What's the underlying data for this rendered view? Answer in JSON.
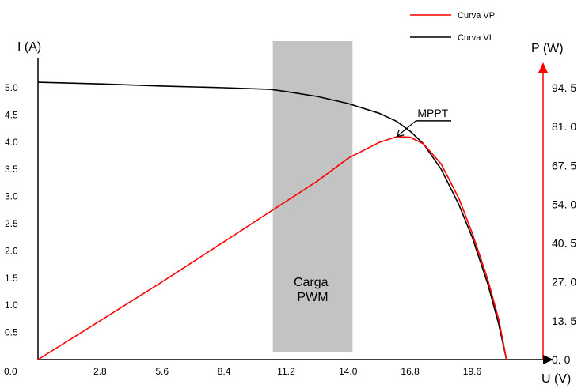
{
  "chart_data": {
    "type": "line",
    "x_axis": {
      "label": "U (V)",
      "origin_label": "0.0",
      "ticks": [
        0,
        2.8,
        5.6,
        8.4,
        11.2,
        14.0,
        16.8,
        19.6
      ],
      "tick_labels": [
        "2.8",
        "5.6",
        "8.4",
        "11.2",
        "14.0",
        "16.8",
        "19.6"
      ],
      "range": [
        0,
        22.8
      ]
    },
    "y_axis_left": {
      "label": "I (A)",
      "ticks": [
        0.5,
        1.0,
        1.5,
        2.0,
        2.5,
        3.0,
        3.5,
        4.0,
        4.5,
        5.0
      ],
      "tick_labels": [
        "0.5",
        "1.0",
        "1.5",
        "2.0",
        "2.5",
        "3.0",
        "3.5",
        "4.0",
        "4.5",
        "5.0"
      ],
      "range": [
        0,
        5.0
      ]
    },
    "y_axis_right": {
      "label": "P (W)",
      "ticks": [
        0,
        13.5,
        27.0,
        40.5,
        54.0,
        67.5,
        81.0,
        94.5
      ],
      "tick_labels": [
        "0. 0",
        "13. 5",
        "27. 0",
        "40. 5",
        "54. 0",
        "67. 5",
        "81. 0",
        "94. 5"
      ],
      "range": [
        0,
        94.5
      ],
      "color": "#ff0000"
    },
    "series": [
      {
        "name": "Curva VP",
        "axis": "right",
        "color": "#ff0000",
        "x": [
          0,
          2.8,
          5.6,
          8.4,
          10.5,
          11.2,
          12.6,
          14.0,
          15.4,
          16.2,
          16.8,
          17.4,
          18.2,
          19.0,
          19.6,
          20.3,
          20.8,
          21.15
        ],
        "y": [
          0,
          13.5,
          27.0,
          41.0,
          51.5,
          55.0,
          62.0,
          70.0,
          75.5,
          77.5,
          77.3,
          75.0,
          68.0,
          56.0,
          44.0,
          28.0,
          14.0,
          0
        ]
      },
      {
        "name": "Curva VI",
        "axis": "left",
        "color": "#000000",
        "x": [
          0,
          2.8,
          5.6,
          8.4,
          10.5,
          11.2,
          12.6,
          14.0,
          15.4,
          16.2,
          16.8,
          17.4,
          18.2,
          19.0,
          19.6,
          20.3,
          20.8,
          21.15
        ],
        "y": [
          5.1,
          5.07,
          5.03,
          5.0,
          4.97,
          4.93,
          4.84,
          4.71,
          4.53,
          4.38,
          4.2,
          3.97,
          3.5,
          2.85,
          2.25,
          1.4,
          0.65,
          0
        ]
      }
    ],
    "shaded_region": {
      "label": "Carga PWM",
      "x_range": [
        10.6,
        14.2
      ],
      "color": "#c3c3c3"
    },
    "annotations": [
      {
        "text": "MPPT",
        "x": 16.2,
        "y_right": 77.5
      }
    ],
    "legend": {
      "position": "top-right",
      "entries": [
        "Curva VP",
        "Curva VI"
      ]
    },
    "grid": false
  }
}
